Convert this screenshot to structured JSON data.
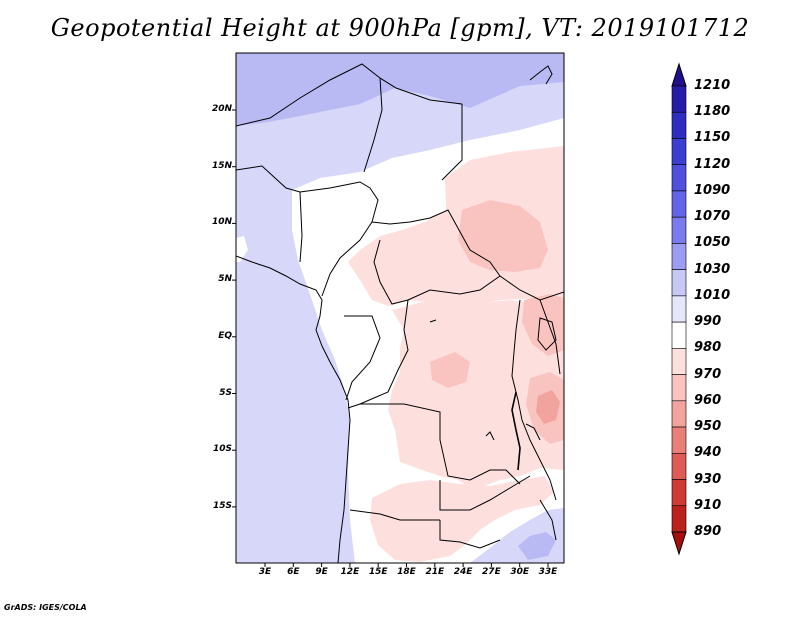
{
  "title": "Geopotential Height at 900hPa [gpm], VT: 2019101712",
  "footer": "GrADS: IGES/COLA",
  "map": {
    "lat_labels": [
      "20N",
      "15N",
      "10N",
      "5N",
      "EQ",
      "5S",
      "10S",
      "15S"
    ],
    "lon_labels": [
      "3E",
      "6E",
      "9E",
      "12E",
      "15E",
      "18E",
      "21E",
      "24E",
      "27E",
      "30E",
      "33E"
    ]
  },
  "colorbar": {
    "levels": [
      "1210",
      "1180",
      "1150",
      "1120",
      "1090",
      "1070",
      "1050",
      "1030",
      "1010",
      "990",
      "980",
      "970",
      "960",
      "950",
      "940",
      "930",
      "910",
      "890"
    ],
    "colors": [
      "#1f0f8c",
      "#261ca8",
      "#2e2dbf",
      "#3b3fcf",
      "#5050dc",
      "#6464e6",
      "#7b7bee",
      "#9c9cf2",
      "#c8c8f6",
      "#e6e6fb",
      "#ffffff",
      "#fde0de",
      "#f9c3bf",
      "#f2a39e",
      "#e9807a",
      "#dd5c56",
      "#cf3b35",
      "#bd211b",
      "#a80e0a"
    ]
  }
}
